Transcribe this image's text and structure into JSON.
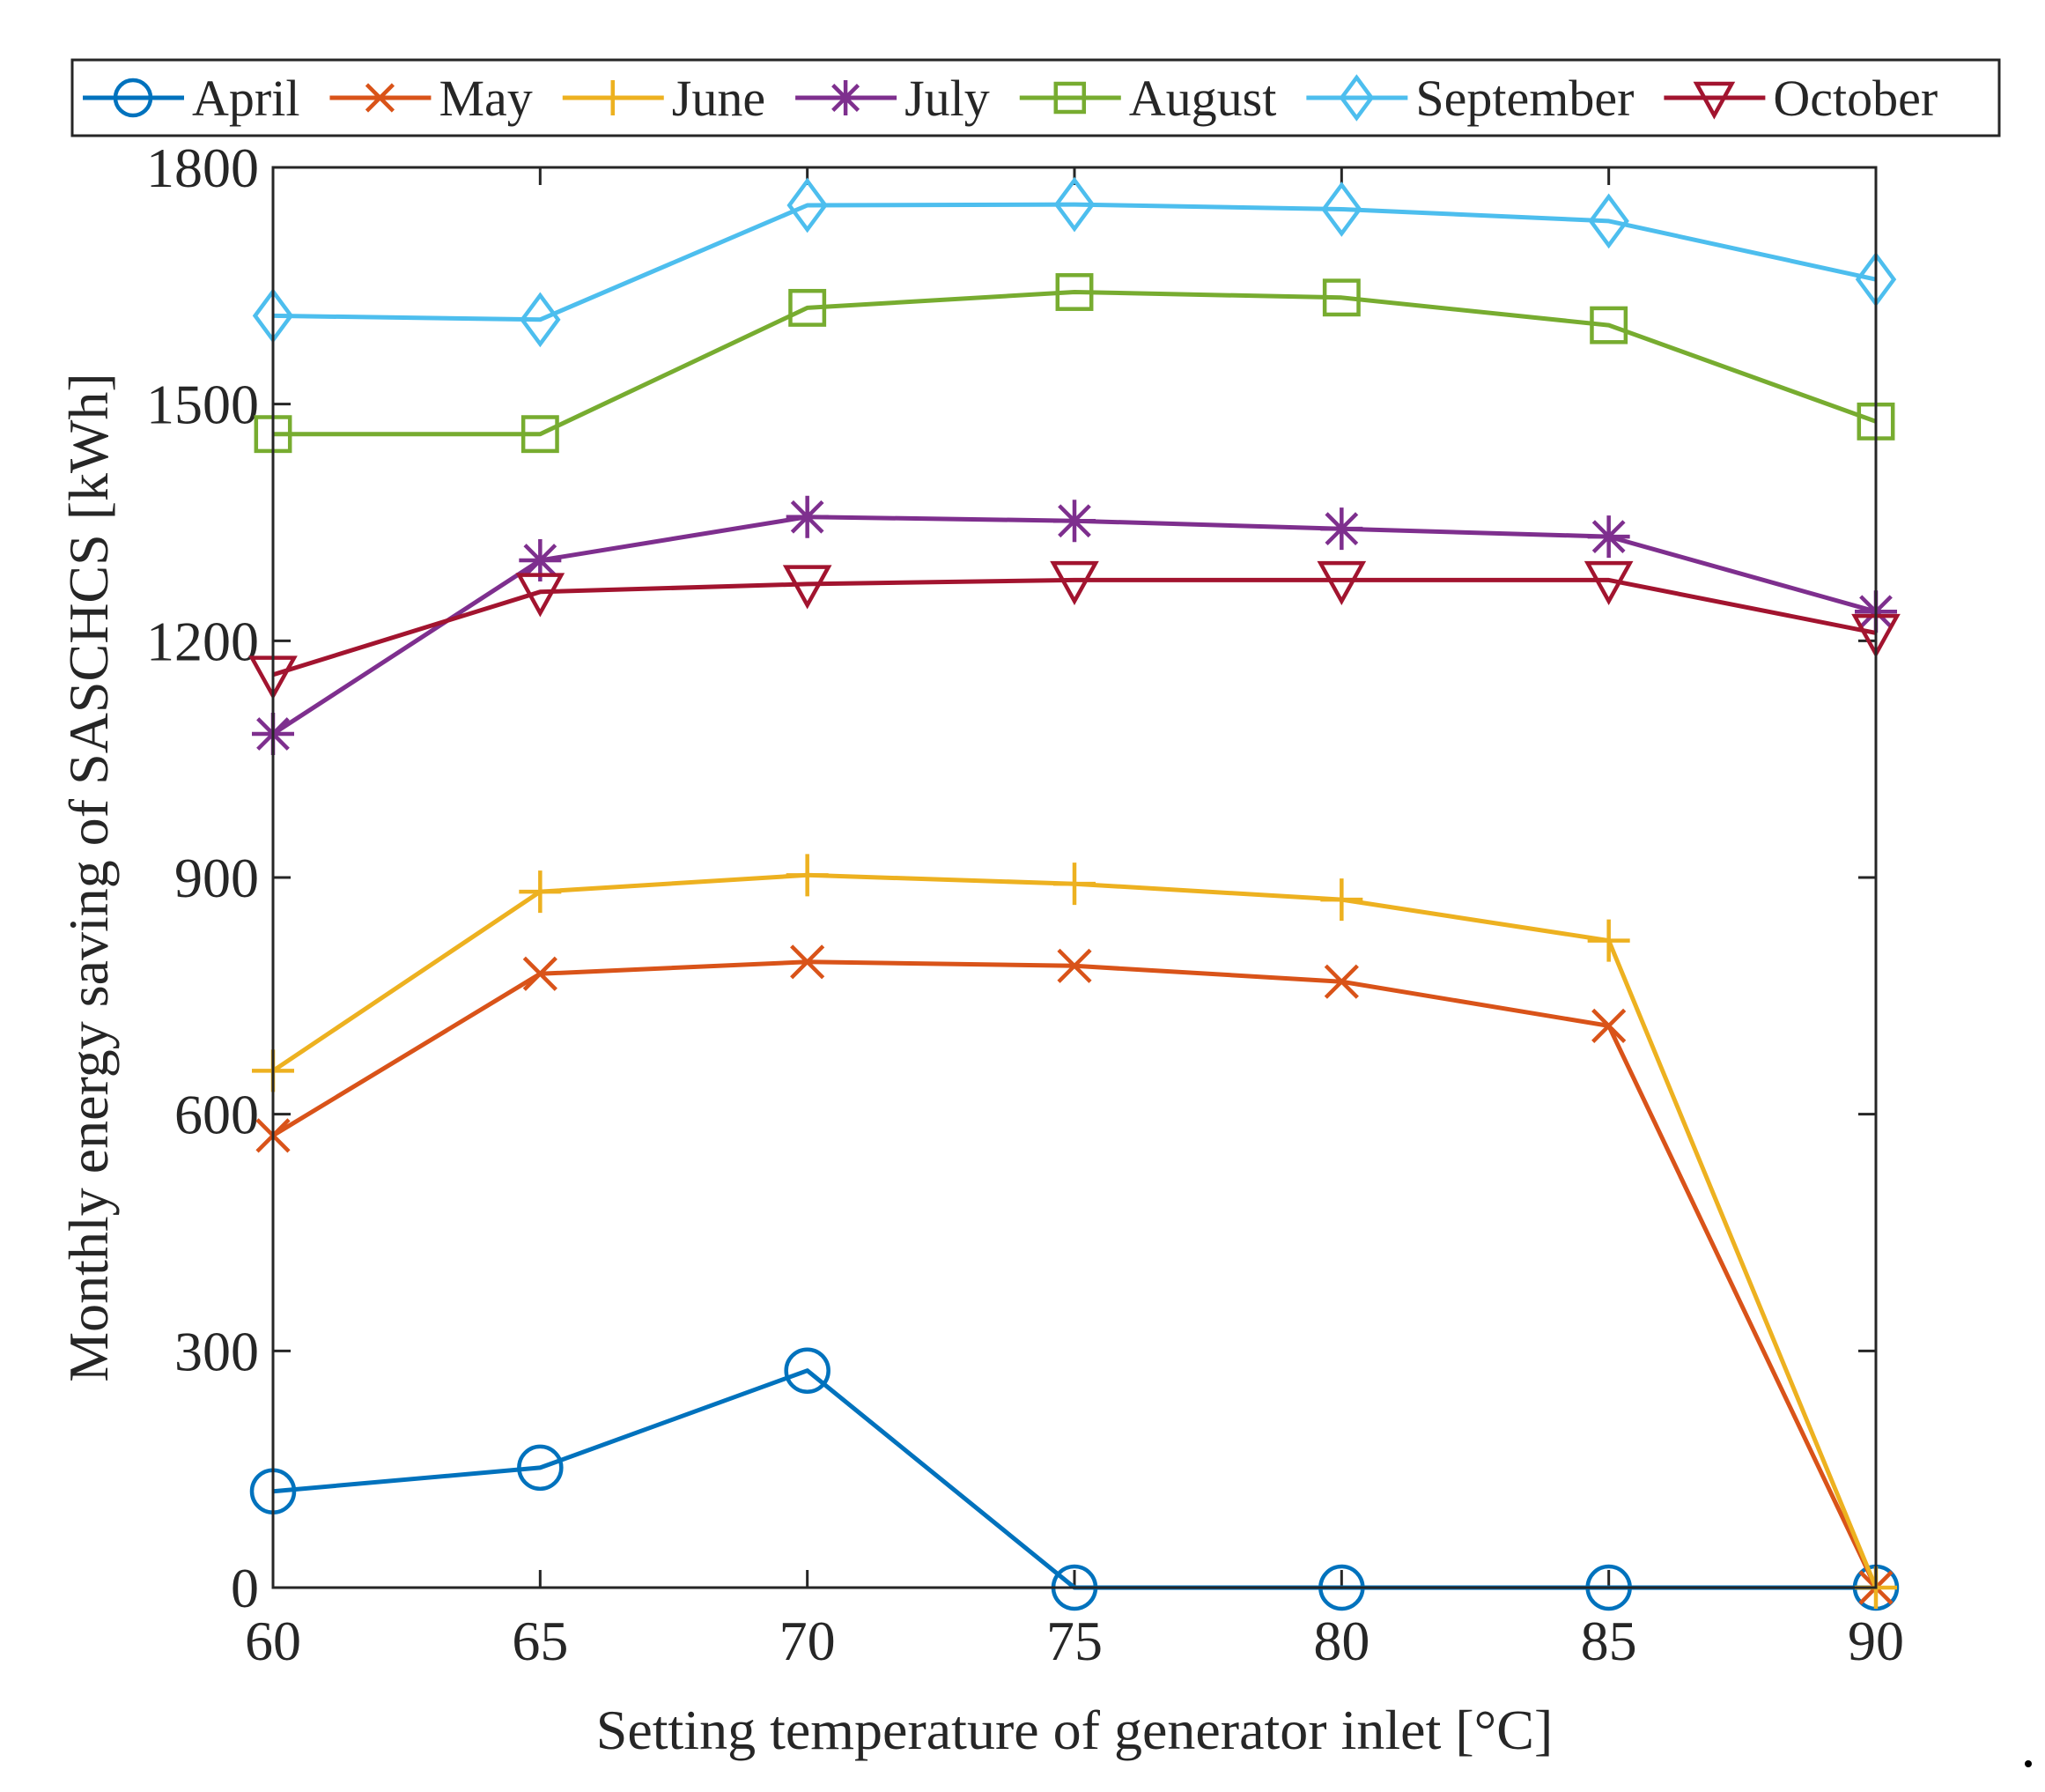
{
  "chart_data": {
    "type": "line",
    "title": "",
    "xlabel": "Setting temperature of generator inlet [°C]",
    "ylabel": "Monthly energy saving of SASCHCS [kWh]",
    "x": [
      60,
      65,
      70,
      75,
      80,
      85,
      90
    ],
    "xlim": [
      60,
      90
    ],
    "ylim": [
      0,
      1800
    ],
    "xticks": [
      "60",
      "65",
      "70",
      "75",
      "80",
      "85",
      "90"
    ],
    "yticks": [
      "0",
      "300",
      "600",
      "900",
      "1200",
      "1500",
      "1800"
    ],
    "grid": false,
    "legend_position": "top (outside, horizontal)",
    "series": [
      {
        "name": "April",
        "marker": "circle",
        "color": "#0072BD",
        "values": [
          122,
          152,
          275,
          0,
          0,
          0,
          0
        ]
      },
      {
        "name": "May",
        "marker": "x",
        "color": "#D95319",
        "values": [
          573,
          778,
          793,
          788,
          768,
          712,
          0
        ]
      },
      {
        "name": "June",
        "marker": "plus",
        "color": "#EDB120",
        "values": [
          655,
          882,
          903,
          892,
          872,
          820,
          0
        ]
      },
      {
        "name": "July",
        "marker": "asterisk",
        "color": "#7E2F8E",
        "values": [
          1082,
          1302,
          1357,
          1352,
          1342,
          1332,
          1237
        ]
      },
      {
        "name": "August",
        "marker": "square",
        "color": "#77AC30",
        "values": [
          1462,
          1462,
          1622,
          1642,
          1635,
          1600,
          1478
        ]
      },
      {
        "name": "September",
        "marker": "diamond",
        "color": "#4DBEEE",
        "values": [
          1612,
          1607,
          1752,
          1753,
          1747,
          1732,
          1658
        ]
      },
      {
        "name": "October",
        "marker": "triangle-down",
        "color": "#A2142F",
        "values": [
          1157,
          1262,
          1272,
          1277,
          1277,
          1277,
          1210
        ]
      }
    ]
  }
}
